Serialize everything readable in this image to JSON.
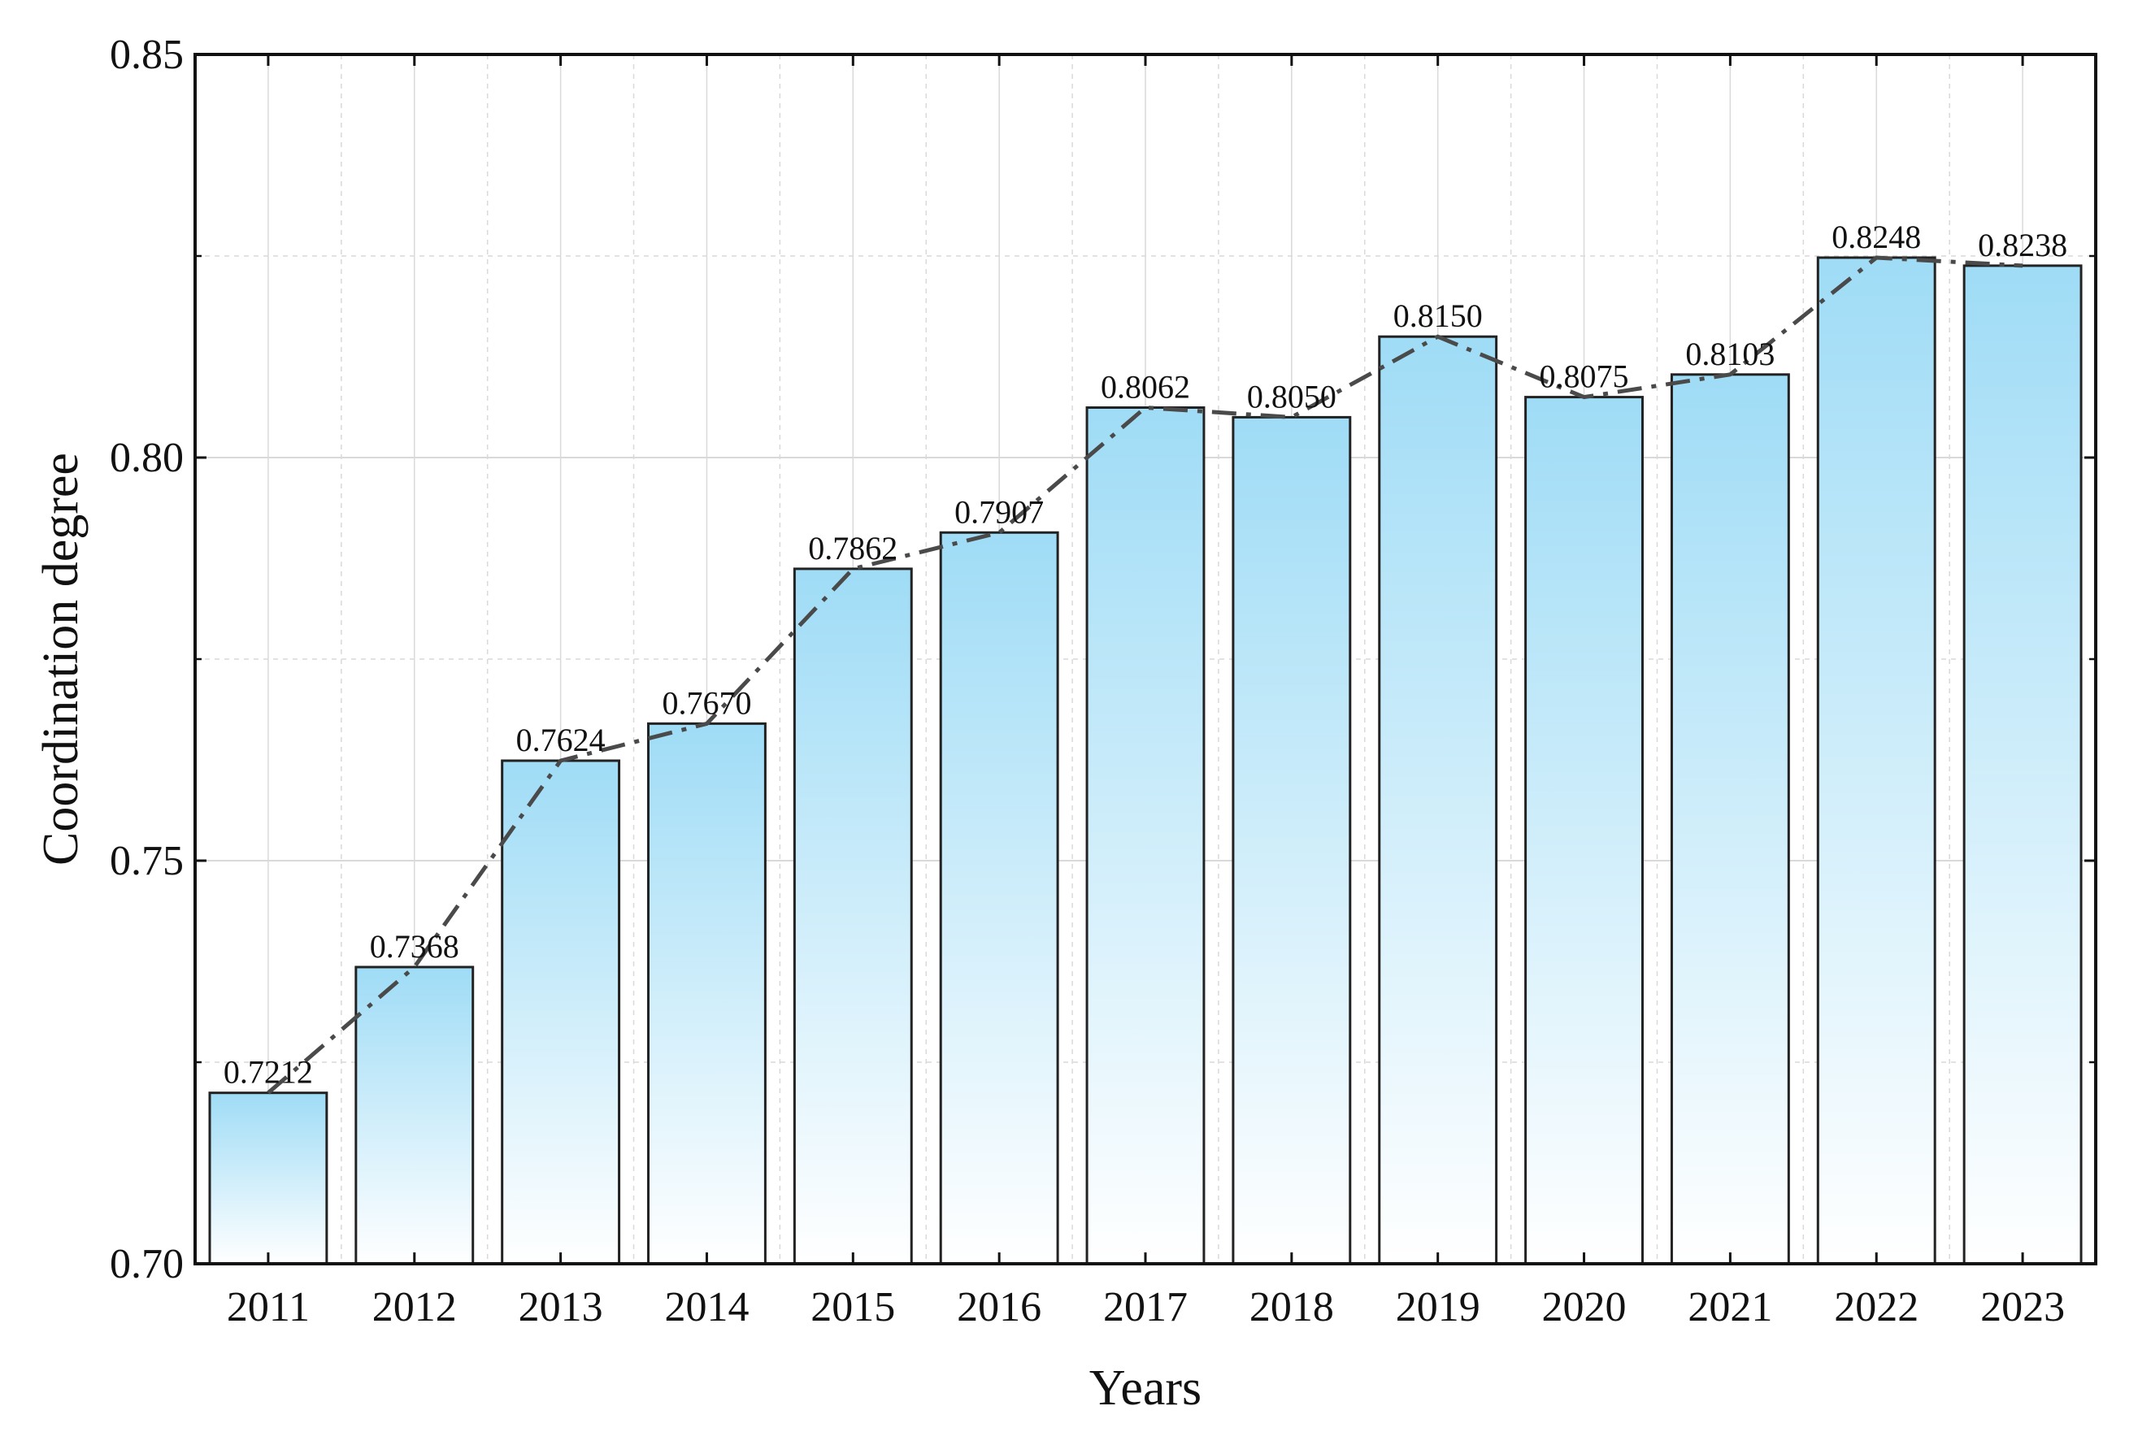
{
  "chart_data": {
    "type": "bar",
    "title": "",
    "xlabel": "Years",
    "ylabel": "Coordination degree",
    "categories": [
      "2011",
      "2012",
      "2013",
      "2014",
      "2015",
      "2016",
      "2017",
      "2018",
      "2019",
      "2020",
      "2021",
      "2022",
      "2023"
    ],
    "values": [
      0.7212,
      0.7368,
      0.7624,
      0.767,
      0.7862,
      0.7907,
      0.8062,
      0.805,
      0.815,
      0.8075,
      0.8103,
      0.8248,
      0.8238
    ],
    "value_labels": [
      "0.7212",
      "0.7368",
      "0.7624",
      "0.7670",
      "0.7862",
      "0.7907",
      "0.8062",
      "0.8050",
      "0.8150",
      "0.8075",
      "0.8103",
      "0.8248",
      "0.8238"
    ],
    "ylim": [
      0.7,
      0.85
    ],
    "yticks": [
      "0.70",
      "0.75",
      "0.80",
      "0.85"
    ],
    "grid": true,
    "trend_line": "dash-dot",
    "colors": {
      "bar_top": "#9fdcf6",
      "bar_bottom": "#ffffff",
      "bar_edge": "#222222",
      "trend": "#4a4a4a",
      "grid": "#d9d9d9"
    }
  }
}
